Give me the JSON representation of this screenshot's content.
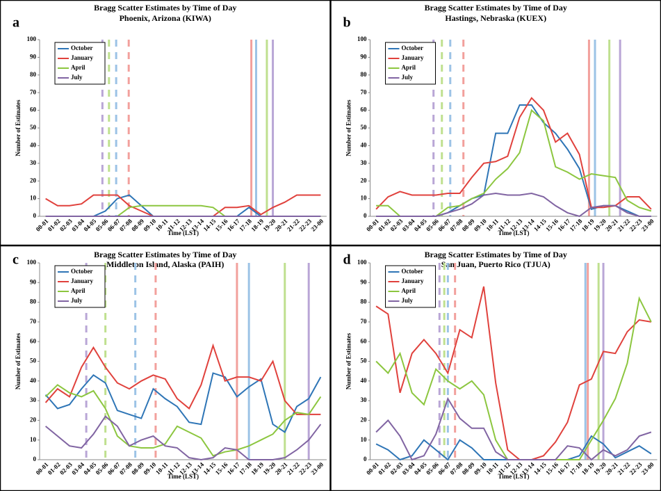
{
  "chart_data": [
    {
      "type": "line",
      "panel": "a",
      "title": "Bragg Scatter Estimates by Time of Day",
      "subtitle": "Phoenix, Arizona (KIWA)",
      "y_label": "Number of Estimates",
      "x_label": "Time (LST)",
      "categories": [
        "00-01",
        "01-02",
        "02-03",
        "03-04",
        "04-05",
        "05-06",
        "06-07",
        "07-08",
        "08-09",
        "09-10",
        "10-11",
        "11-12",
        "12-13",
        "13-14",
        "14-15",
        "15-16",
        "16-17",
        "17-18",
        "18-19",
        "19-20",
        "20-21",
        "21-22",
        "22-23",
        "23-00"
      ],
      "ylim": [
        0,
        100
      ],
      "yticks": [
        0,
        10,
        20,
        30,
        40,
        50,
        60,
        70,
        80,
        90,
        100
      ],
      "grid": false,
      "series": [
        {
          "name": "October",
          "color": "#2e75b6",
          "values": [
            0,
            0,
            0,
            0,
            0,
            3,
            10,
            12,
            6,
            0,
            0,
            0,
            0,
            0,
            0,
            0,
            0,
            5,
            0,
            0,
            0,
            0,
            0,
            0
          ]
        },
        {
          "name": "January",
          "color": "#e0413c",
          "values": [
            10,
            6,
            6,
            7,
            12,
            12,
            12,
            6,
            3,
            0,
            0,
            0,
            0,
            0,
            0,
            5,
            5,
            6,
            1,
            5,
            8,
            12,
            12,
            12
          ]
        },
        {
          "name": "April",
          "color": "#8cc63f",
          "values": [
            0,
            0,
            0,
            0,
            0,
            0,
            0,
            5,
            6,
            6,
            6,
            6,
            6,
            6,
            5,
            0,
            0,
            0,
            0,
            0,
            0,
            0,
            0,
            0
          ]
        },
        {
          "name": "July",
          "color": "#8064a2",
          "values": [
            0,
            0,
            0,
            0,
            0,
            0,
            0,
            0,
            0,
            0,
            0,
            0,
            0,
            0,
            0,
            0,
            0,
            0,
            0,
            0,
            0,
            0,
            0,
            0
          ]
        }
      ],
      "reference_lines": [
        {
          "x": 4.75,
          "color": "#b9a6d6",
          "dash": true
        },
        {
          "x": 5.3,
          "color": "#bfe08f",
          "dash": true
        },
        {
          "x": 5.9,
          "color": "#9cc3e6",
          "dash": true
        },
        {
          "x": 6.95,
          "color": "#f2a09c",
          "dash": true
        },
        {
          "x": 17.2,
          "color": "#f2a09c",
          "dash": false
        },
        {
          "x": 17.6,
          "color": "#9cc3e6",
          "dash": false
        },
        {
          "x": 18.5,
          "color": "#bfe08f",
          "dash": false
        },
        {
          "x": 19.0,
          "color": "#b9a6d6",
          "dash": false
        }
      ]
    },
    {
      "type": "line",
      "panel": "b",
      "title": "Bragg Scatter Estimates by Time of Day",
      "subtitle": "Hastings, Nebraska (KUEX)",
      "y_label": "Number of Estimates",
      "x_label": "Time (LST)",
      "categories": [
        "00-01",
        "01-02",
        "02-03",
        "03-04",
        "04-05",
        "05-06",
        "06-07",
        "07-08",
        "08-09",
        "09-10",
        "10-11",
        "11-12",
        "12-13",
        "13-14",
        "14-15",
        "15-16",
        "16-17",
        "17-18",
        "18-19",
        "19-20",
        "20-21",
        "21-22",
        "22-23",
        "23-00"
      ],
      "ylim": [
        0,
        100
      ],
      "yticks": [
        0,
        10,
        20,
        30,
        40,
        50,
        60,
        70,
        80,
        90,
        100
      ],
      "grid": false,
      "series": [
        {
          "name": "October",
          "color": "#2e75b6",
          "values": [
            0,
            0,
            0,
            0,
            0,
            0,
            2,
            6,
            10,
            12,
            47,
            47,
            63,
            63,
            53,
            47,
            38,
            27,
            4,
            6,
            6,
            3,
            0,
            0
          ]
        },
        {
          "name": "January",
          "color": "#e0413c",
          "values": [
            4,
            11,
            14,
            12,
            12,
            12,
            13,
            13,
            22,
            30,
            31,
            34,
            56,
            67,
            60,
            42,
            47,
            35,
            5,
            5,
            6,
            11,
            11,
            4
          ]
        },
        {
          "name": "April",
          "color": "#8cc63f",
          "values": [
            6,
            6,
            0,
            0,
            0,
            0,
            5,
            6,
            10,
            13,
            21,
            27,
            36,
            60,
            54,
            28,
            25,
            21,
            24,
            23,
            22,
            9,
            5,
            3
          ]
        },
        {
          "name": "July",
          "color": "#8064a2",
          "values": [
            0,
            0,
            0,
            0,
            0,
            0,
            2,
            4,
            7,
            12,
            13,
            12,
            12,
            13,
            11,
            6,
            2,
            0,
            5,
            6,
            6,
            2,
            0,
            0
          ]
        }
      ],
      "reference_lines": [
        {
          "x": 4.8,
          "color": "#b9a6d6",
          "dash": true
        },
        {
          "x": 5.5,
          "color": "#bfe08f",
          "dash": true
        },
        {
          "x": 6.2,
          "color": "#9cc3e6",
          "dash": true
        },
        {
          "x": 7.3,
          "color": "#f2a09c",
          "dash": true
        },
        {
          "x": 17.8,
          "color": "#f2a09c",
          "dash": false
        },
        {
          "x": 18.3,
          "color": "#9cc3e6",
          "dash": false
        },
        {
          "x": 19.5,
          "color": "#bfe08f",
          "dash": false
        },
        {
          "x": 20.4,
          "color": "#b9a6d6",
          "dash": false
        }
      ]
    },
    {
      "type": "line",
      "panel": "c",
      "title": "Bragg Scatter Estimates by Time of Day",
      "subtitle": "Middleton Island, Alaska (PAIH)",
      "y_label": "Number of Estimates",
      "x_label": "Time (LST)",
      "categories": [
        "00-01",
        "01-02",
        "02-03",
        "03-04",
        "04-05",
        "05-06",
        "06-07",
        "07-08",
        "08-09",
        "09-10",
        "10-11",
        "11-12",
        "12-13",
        "13-14",
        "14-15",
        "15-16",
        "16-17",
        "17-18",
        "18-19",
        "19-20",
        "20-21",
        "21-22",
        "22-23",
        "23-00"
      ],
      "ylim": [
        0,
        100
      ],
      "yticks": [
        0,
        10,
        20,
        30,
        40,
        50,
        60,
        70,
        80,
        90,
        100
      ],
      "grid": false,
      "series": [
        {
          "name": "October",
          "color": "#2e75b6",
          "values": [
            33,
            26,
            28,
            36,
            43,
            39,
            25,
            23,
            21,
            36,
            31,
            27,
            19,
            18,
            44,
            42,
            32,
            37,
            41,
            18,
            14,
            27,
            31,
            42
          ]
        },
        {
          "name": "January",
          "color": "#e0413c",
          "values": [
            29,
            36,
            32,
            47,
            57,
            47,
            39,
            36,
            40,
            43,
            41,
            31,
            26,
            38,
            58,
            40,
            42,
            42,
            40,
            50,
            30,
            23,
            23,
            23
          ]
        },
        {
          "name": "April",
          "color": "#8cc63f",
          "values": [
            32,
            38,
            34,
            32,
            35,
            26,
            12,
            7,
            6,
            6,
            8,
            17,
            14,
            11,
            2,
            4,
            5,
            7,
            10,
            13,
            20,
            24,
            23,
            32
          ]
        },
        {
          "name": "July",
          "color": "#8064a2",
          "values": [
            17,
            12,
            7,
            6,
            13,
            22,
            17,
            7,
            10,
            12,
            7,
            6,
            1,
            0,
            1,
            6,
            5,
            0,
            0,
            0,
            1,
            5,
            10,
            18
          ]
        }
      ],
      "reference_lines": [
        {
          "x": 3.4,
          "color": "#b9a6d6",
          "dash": true
        },
        {
          "x": 5.0,
          "color": "#bfe08f",
          "dash": true
        },
        {
          "x": 7.5,
          "color": "#9cc3e6",
          "dash": true
        },
        {
          "x": 9.2,
          "color": "#f2a09c",
          "dash": true
        },
        {
          "x": 16.0,
          "color": "#f2a09c",
          "dash": false
        },
        {
          "x": 17.0,
          "color": "#9cc3e6",
          "dash": false
        },
        {
          "x": 20.0,
          "color": "#bfe08f",
          "dash": false
        },
        {
          "x": 22.0,
          "color": "#b9a6d6",
          "dash": false
        }
      ]
    },
    {
      "type": "line",
      "panel": "d",
      "title": "Bragg Scatter Estimates by Time of Day",
      "subtitle": "San Juan, Puerto Rico (TJUA)",
      "y_label": "Number of Estimates",
      "x_label": "Time (LST)",
      "categories": [
        "00-01",
        "01-02",
        "02-03",
        "03-04",
        "04-05",
        "05-06",
        "06-07",
        "07-08",
        "08-09",
        "09-10",
        "10-11",
        "11-12",
        "12-13",
        "13-14",
        "14-15",
        "15-16",
        "16-17",
        "17-18",
        "18-19",
        "19-20",
        "20-21",
        "21-22",
        "22-23",
        "23-00"
      ],
      "ylim": [
        0,
        100
      ],
      "yticks": [
        0,
        10,
        20,
        30,
        40,
        50,
        60,
        70,
        80,
        90,
        100
      ],
      "grid": false,
      "series": [
        {
          "name": "October",
          "color": "#2e75b6",
          "values": [
            8,
            5,
            0,
            2,
            10,
            5,
            0,
            10,
            6,
            0,
            0,
            0,
            0,
            0,
            0,
            0,
            0,
            2,
            12,
            8,
            1,
            4,
            7,
            3
          ]
        },
        {
          "name": "January",
          "color": "#e0413c",
          "values": [
            78,
            74,
            34,
            54,
            61,
            54,
            44,
            66,
            62,
            88,
            39,
            5,
            0,
            0,
            2,
            9,
            19,
            38,
            41,
            55,
            54,
            65,
            71,
            70
          ]
        },
        {
          "name": "April",
          "color": "#8cc63f",
          "values": [
            50,
            44,
            54,
            34,
            28,
            46,
            40,
            36,
            40,
            33,
            10,
            0,
            0,
            0,
            0,
            0,
            0,
            0,
            10,
            20,
            31,
            49,
            82,
            70
          ]
        },
        {
          "name": "July",
          "color": "#8064a2",
          "values": [
            14,
            20,
            12,
            0,
            2,
            13,
            31,
            21,
            16,
            16,
            4,
            0,
            0,
            0,
            0,
            0,
            7,
            6,
            0,
            5,
            2,
            5,
            12,
            14
          ]
        }
      ],
      "reference_lines": [
        {
          "x": 5.3,
          "color": "#b9a6d6",
          "dash": true
        },
        {
          "x": 5.7,
          "color": "#bfe08f",
          "dash": true
        },
        {
          "x": 6.0,
          "color": "#9cc3e6",
          "dash": true
        },
        {
          "x": 6.6,
          "color": "#f2a09c",
          "dash": true
        },
        {
          "x": 17.5,
          "color": "#9cc3e6",
          "dash": false
        },
        {
          "x": 17.7,
          "color": "#f2a09c",
          "dash": false
        },
        {
          "x": 18.6,
          "color": "#bfe08f",
          "dash": false
        },
        {
          "x": 19.0,
          "color": "#b9a6d6",
          "dash": false
        }
      ]
    }
  ]
}
